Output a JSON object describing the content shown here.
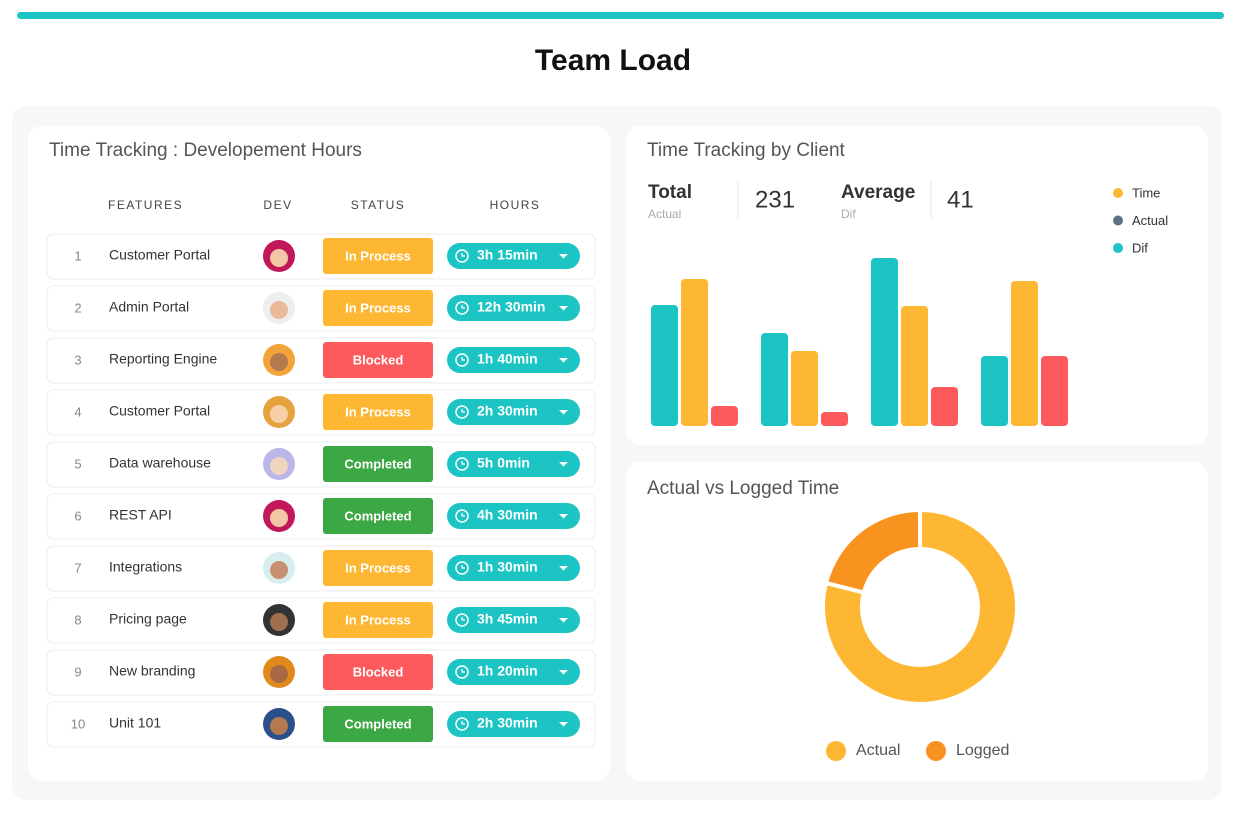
{
  "title": "Team Load",
  "tracking": {
    "title": "Time Tracking : Developement Hours",
    "columns": [
      "FEATURES",
      "DEV",
      "STATUS",
      "HOURS"
    ],
    "rows": [
      {
        "index": 1,
        "feature": "Customer Portal",
        "status": "In Process",
        "status_color": "#fdb733",
        "hours": "3h 15min"
      },
      {
        "index": 2,
        "feature": "Admin Portal",
        "status": "In Process",
        "status_color": "#fdb733",
        "hours": "12h 30min"
      },
      {
        "index": 3,
        "feature": "Reporting Engine",
        "status": "Blocked",
        "status_color": "#fd5a5e",
        "hours": "1h 40min"
      },
      {
        "index": 4,
        "feature": "Customer Portal",
        "status": "In Process",
        "status_color": "#fdb733",
        "hours": "2h 30min"
      },
      {
        "index": 5,
        "feature": "Data warehouse",
        "status": "Completed",
        "status_color": "#3ca745",
        "hours": "5h 0min"
      },
      {
        "index": 6,
        "feature": "REST API",
        "status": "Completed",
        "status_color": "#3ca745",
        "hours": "4h 30min"
      },
      {
        "index": 7,
        "feature": "Integrations",
        "status": "In Process",
        "status_color": "#fdb733",
        "hours": "1h 30min"
      },
      {
        "index": 8,
        "feature": "Pricing page",
        "status": "In Process",
        "status_color": "#fdb733",
        "hours": "3h 45min"
      },
      {
        "index": 9,
        "feature": "New branding",
        "status": "Blocked",
        "status_color": "#fd5a5e",
        "hours": "1h 20min"
      },
      {
        "index": 10,
        "feature": "Unit 101",
        "status": "Completed",
        "status_color": "#3ca745",
        "hours": "2h 30min"
      }
    ]
  },
  "client_chart": {
    "type": "bar",
    "title": "Time Tracking by Client",
    "stats": [
      {
        "label": "Total",
        "sublabel": "Actual",
        "value": 231
      },
      {
        "label": "Average",
        "sublabel": "Dif",
        "value": 41
      }
    ],
    "legend": [
      {
        "name": "Time",
        "color": "#fdb733"
      },
      {
        "name": "Actual",
        "color": "#5c7185"
      },
      {
        "name": "Dif",
        "color": "#1cc4c4"
      }
    ],
    "series": [
      {
        "color": "#1cc4c4",
        "values": [
          121,
          93,
          168,
          70
        ]
      },
      {
        "color": "#fdb733",
        "values": [
          147,
          75,
          120,
          145
        ]
      },
      {
        "color": "#fd5a5e",
        "values": [
          20,
          14,
          39,
          70
        ]
      }
    ]
  },
  "logged_chart": {
    "type": "donut",
    "title": "Actual vs Logged Time",
    "categories": [
      "Actual",
      "Logged"
    ],
    "values": [
      79,
      21
    ],
    "colors": [
      "#fdb733",
      "#f7931e"
    ]
  }
}
